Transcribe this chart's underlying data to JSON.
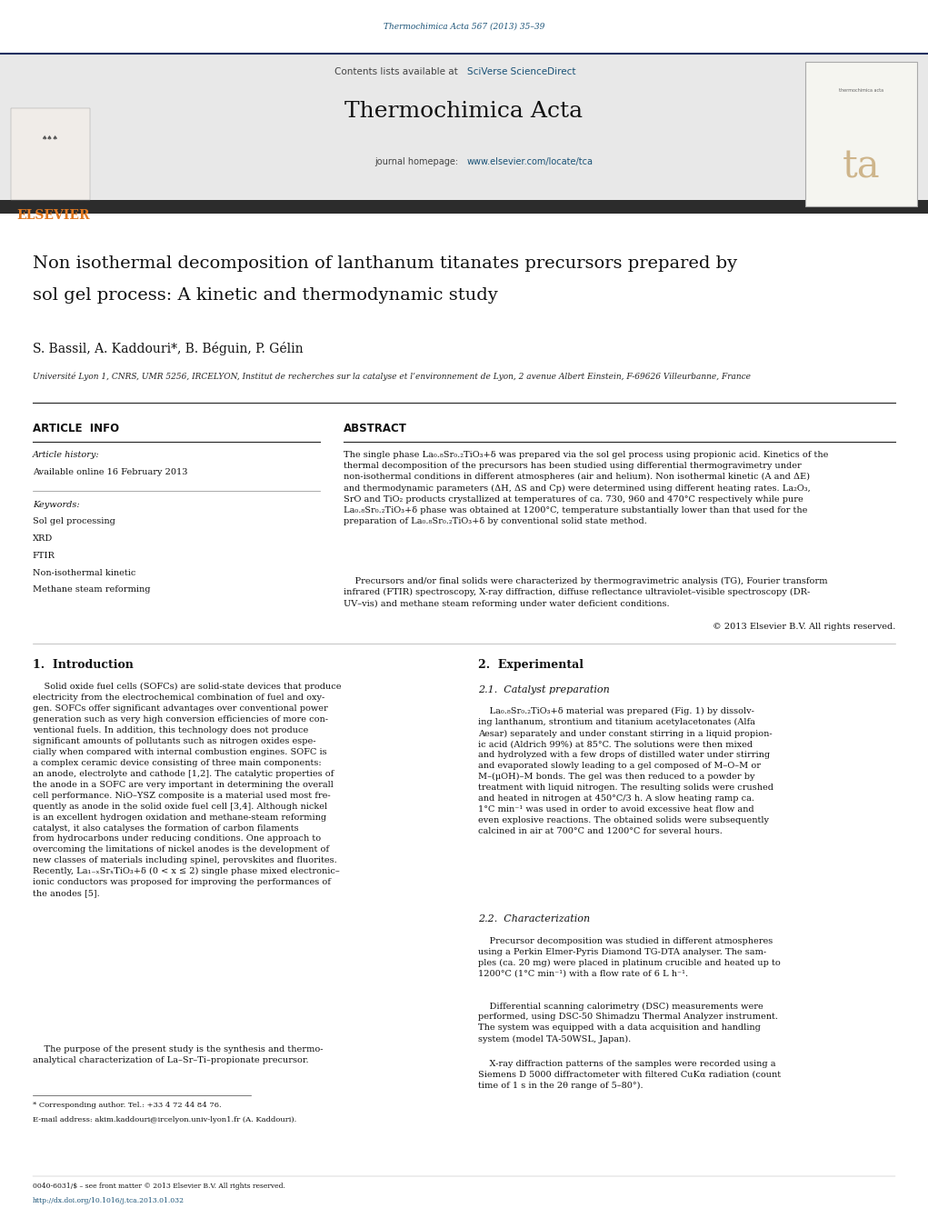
{
  "page_width": 10.21,
  "page_height": 13.51,
  "dpi": 100,
  "bg_color": "#ffffff",
  "header_journal_ref": "Thermochimica Acta 567 (2013) 35–39",
  "header_journal_ref_color": "#1a5276",
  "header_contents_text": "Contents lists available at ",
  "header_sciverse": "SciVerse ScienceDirect",
  "header_sciverse_color": "#1a5276",
  "journal_name": "Thermochimica Acta",
  "journal_homepage_text": "journal homepage: ",
  "journal_homepage_url": "www.elsevier.com/locate/tca",
  "journal_homepage_url_color": "#1a5276",
  "header_bg": "#e8e8e8",
  "dark_bar_color": "#2c2c2c",
  "elsevier_color": "#e07820",
  "article_title_line1": "Non isothermal decomposition of lanthanum titanates precursors prepared by",
  "article_title_line2": "sol gel process: A kinetic and thermodynamic study",
  "authors": "S. Bassil, A. Kaddouri*, B. Béguin, P. Gélin",
  "affiliation": "Université Lyon 1, CNRS, UMR 5256, IRCELYON, Institut de recherches sur la catalyse et l’environnement de Lyon, 2 avenue Albert Einstein, F-69626 Villeurbanne, France",
  "article_info_title": "ARTICLE  INFO",
  "abstract_title": "ABSTRACT",
  "article_history_label": "Article history:",
  "available_online": "Available online 16 February 2013",
  "keywords_label": "Keywords:",
  "keywords": [
    "Sol gel processing",
    "XRD",
    "FTIR",
    "Non-isothermal kinetic",
    "Methane steam reforming"
  ],
  "copyright": "© 2013 Elsevier B.V. All rights reserved.",
  "section1_title": "1.  Introduction",
  "section2_title": "2.  Experimental",
  "section21_title": "2.1.  Catalyst preparation",
  "section22_title": "2.2.  Characterization",
  "footnote_star": "* Corresponding author. Tel.: +33 4 72 44 84 76.",
  "footnote_email": "E-mail address: akim.kaddouri@ircelyon.univ-lyon1.fr (A. Kaddouri).",
  "footnote_issn": "0040-6031/$ – see front matter © 2013 Elsevier B.V. All rights reserved.",
  "footnote_doi": "http://dx.doi.org/10.1016/j.tca.2013.01.032"
}
